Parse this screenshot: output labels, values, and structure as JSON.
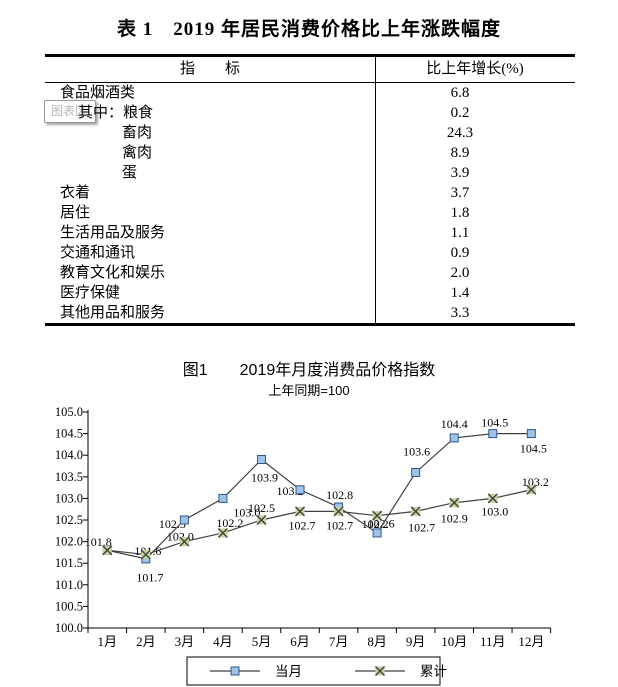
{
  "table": {
    "title": "表 1　2019 年居民消费价格比上年涨跌幅度",
    "header": {
      "indicator": "指　　标",
      "growth": "比上年增长(%)"
    },
    "rows": [
      {
        "label": "食品烟酒类",
        "value": "6.8"
      },
      {
        "label": "其中：粮食",
        "value": "0.2"
      },
      {
        "label": "畜肉",
        "value": "24.3"
      },
      {
        "label": "禽肉",
        "value": "8.9"
      },
      {
        "label": "蛋",
        "value": "3.9"
      },
      {
        "label": "衣着",
        "value": "3.7"
      },
      {
        "label": "居住",
        "value": "1.8"
      },
      {
        "label": "生活用品及服务",
        "value": "1.1"
      },
      {
        "label": "交通和通讯",
        "value": "0.9"
      },
      {
        "label": "教育文化和娱乐",
        "value": "2.0"
      },
      {
        "label": "医疗保健",
        "value": "1.4"
      },
      {
        "label": "其他用品和服务",
        "value": "3.3"
      }
    ]
  },
  "tooltip": {
    "text": "图表区"
  },
  "chart_data": {
    "type": "line",
    "title": "图1　　2019年月度消费品价格指数",
    "subtitle": "上年同期=100",
    "categories": [
      "1月",
      "2月",
      "3月",
      "4月",
      "5月",
      "6月",
      "7月",
      "8月",
      "9月",
      "10月",
      "11月",
      "12月"
    ],
    "series": [
      {
        "name": "当月",
        "marker": "square",
        "marker_fill": "#9dc3e6",
        "marker_stroke": "#34558b",
        "line_color": "#404040",
        "values": [
          101.8,
          101.6,
          102.5,
          103.0,
          103.9,
          103.2,
          102.8,
          102.2,
          103.6,
          104.4,
          104.5,
          104.5
        ]
      },
      {
        "name": "累计",
        "marker": "x",
        "marker_fill": "#c3d69b",
        "marker_stroke": "#404040",
        "line_color": "#404040",
        "values": [
          101.8,
          101.7,
          102.0,
          102.2,
          102.5,
          102.7,
          102.7,
          102.6,
          102.7,
          102.9,
          103.0,
          103.2
        ]
      }
    ],
    "ylim": [
      100.0,
      105.0
    ],
    "ytick_step": 0.5,
    "grid": false,
    "legend_position": "bottom"
  }
}
